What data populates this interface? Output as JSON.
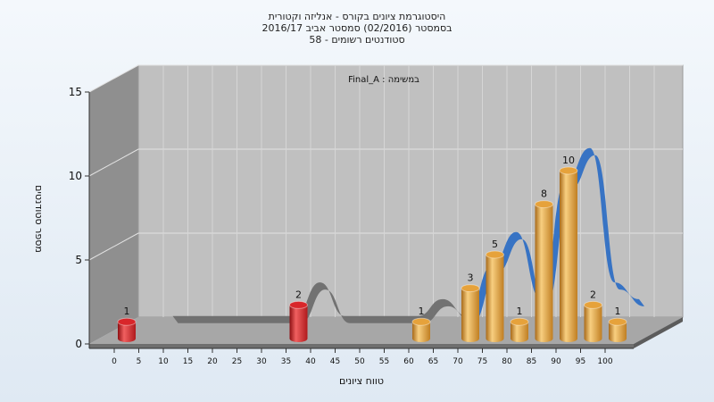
{
  "title_lines": [
    "היסטוגרמת ציונים בקורס - אנליזה וקטורית",
    "בסמסטר  (02/2016)  סמסטר אביב 2016/17",
    "סטודנטים רשומים - 58"
  ],
  "chart_data": {
    "type": "bar",
    "inner_label": "Final_A : במשימה",
    "xlabel": "טווח ציונים",
    "ylabel": "מספר סטודנטים",
    "ylim": [
      0,
      15
    ],
    "yticks": [
      "0",
      "5",
      "10",
      "15"
    ],
    "xticks": [
      "0",
      "5",
      "10",
      "15",
      "20",
      "25",
      "30",
      "35",
      "40",
      "45",
      "50",
      "55",
      "60",
      "65",
      "70",
      "75",
      "80",
      "85",
      "90",
      "95",
      "100"
    ],
    "bars": [
      {
        "x": 0,
        "value": 1,
        "label": "1",
        "color": "#d8262a"
      },
      {
        "x": 35,
        "value": 2,
        "label": "2",
        "color": "#d8262a"
      },
      {
        "x": 60,
        "value": 1,
        "label": "1",
        "color": "#e6a23b"
      },
      {
        "x": 70,
        "value": 3,
        "label": "3",
        "color": "#e6a23b"
      },
      {
        "x": 75,
        "value": 5,
        "label": "5",
        "color": "#e6a23b"
      },
      {
        "x": 80,
        "value": 1,
        "label": "1",
        "color": "#e6a23b"
      },
      {
        "x": 85,
        "value": 8,
        "label": "8",
        "color": "#e6a23b"
      },
      {
        "x": 90,
        "value": 10,
        "label": "10",
        "color": "#e6a23b"
      },
      {
        "x": 95,
        "value": 2,
        "label": "2",
        "color": "#e6a23b"
      },
      {
        "x": 100,
        "value": 1,
        "label": "1",
        "color": "#e6a23b"
      }
    ],
    "trend_colors": {
      "fail": "#6e6e6e",
      "pass": "#2f6fc4"
    },
    "colors": {
      "fail": "#d8262a",
      "pass": "#e6a23b",
      "panel": "#c0c0c0",
      "wall": "#8f8f8f",
      "floor": "#a7a7a7"
    }
  }
}
